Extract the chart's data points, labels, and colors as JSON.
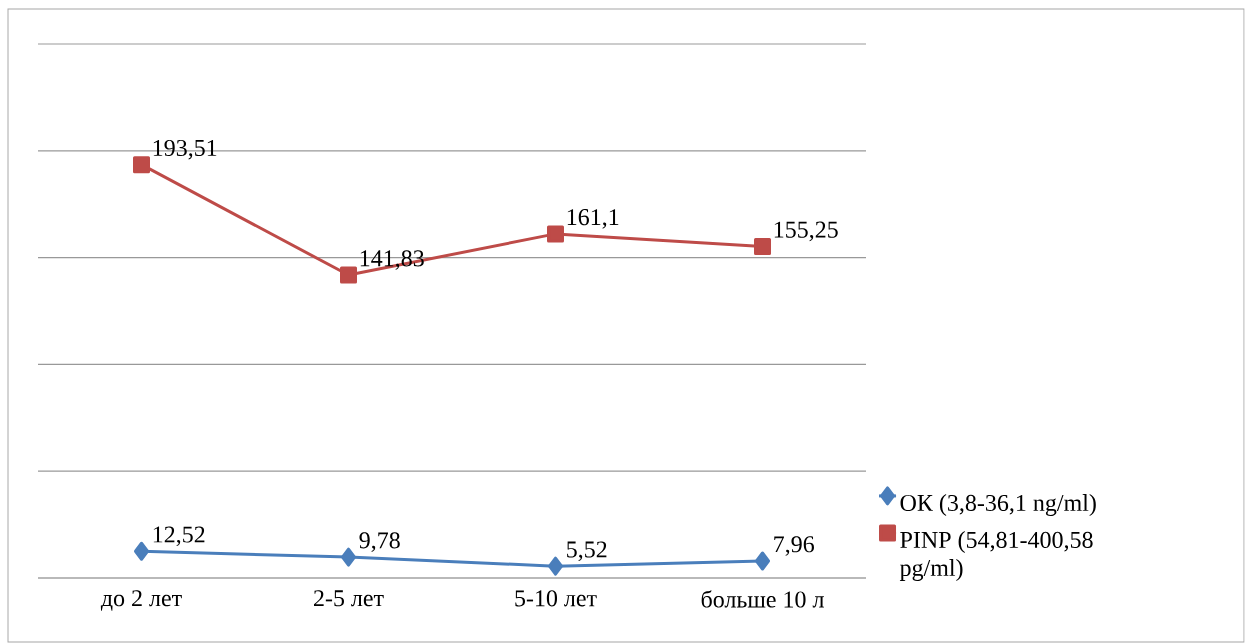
{
  "chart_data": {
    "type": "line",
    "categories": [
      "до 2 лет",
      "2-5 лет",
      "5-10 лет",
      "больше 10 л"
    ],
    "series": [
      {
        "name": "ОК (3,8-36,1 ng/ml)",
        "color": "#4a7ebb",
        "marker": "diamond",
        "values": [
          12.52,
          9.78,
          5.52,
          7.96
        ],
        "value_labels": [
          "12,52",
          "9,78",
          "5,52",
          "7,96"
        ]
      },
      {
        "name": "PINP (54,81-400,58 pg/ml)",
        "color": "#be4b48",
        "marker": "square",
        "values": [
          193.51,
          141.83,
          161.1,
          155.25
        ],
        "value_labels": [
          "193,51",
          "141,83",
          "161,1",
          "155,25"
        ]
      }
    ],
    "ylim": [
      0,
      250
    ],
    "yticks": [
      {
        "value": 0,
        "label": null
      },
      {
        "value": 50,
        "label": null
      },
      {
        "value": 100,
        "label": null
      },
      {
        "value": 150,
        "label": null
      },
      {
        "value": 200,
        "label": null
      },
      {
        "value": 250,
        "label": null
      }
    ],
    "tick_labels": "x",
    "grid": "y",
    "legend": "right",
    "line_style": "solid"
  }
}
